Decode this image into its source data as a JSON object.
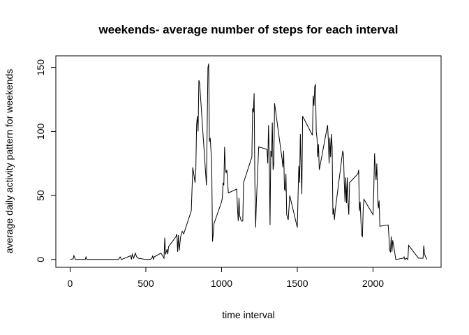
{
  "chart_data": {
    "type": "line",
    "title": "weekends- average number of steps for each interval",
    "x_label": "time interval",
    "y_label": "average daily activity pattern for weekends",
    "color": "#000000",
    "x": [
      0,
      20,
      25,
      35,
      100,
      105,
      110,
      200,
      300,
      320,
      330,
      340,
      400,
      405,
      410,
      420,
      430,
      440,
      450,
      500,
      530,
      540,
      545,
      550,
      555,
      600,
      620,
      625,
      630,
      640,
      645,
      650,
      700,
      705,
      710,
      715,
      720,
      730,
      740,
      750,
      800,
      810,
      825,
      830,
      835,
      840,
      845,
      850,
      855,
      900,
      910,
      915,
      920,
      925,
      935,
      940,
      945,
      950,
      1000,
      1005,
      1010,
      1015,
      1020,
      1025,
      1030,
      1035,
      1040,
      1045,
      1100,
      1105,
      1110,
      1115,
      1120,
      1130,
      1140,
      1145,
      1200,
      1205,
      1210,
      1215,
      1220,
      1225,
      1230,
      1245,
      1300,
      1305,
      1310,
      1315,
      1320,
      1325,
      1330,
      1335,
      1340,
      1345,
      1350,
      1400,
      1405,
      1410,
      1415,
      1420,
      1425,
      1430,
      1440,
      1445,
      1450,
      1500,
      1505,
      1510,
      1515,
      1520,
      1525,
      1530,
      1535,
      1600,
      1605,
      1610,
      1615,
      1620,
      1625,
      1630,
      1635,
      1640,
      1645,
      1700,
      1705,
      1710,
      1715,
      1720,
      1725,
      1730,
      1735,
      1740,
      1745,
      1750,
      1800,
      1805,
      1810,
      1815,
      1820,
      1825,
      1830,
      1835,
      1840,
      1845,
      1900,
      1905,
      1910,
      1915,
      1920,
      1925,
      1930,
      1935,
      1940,
      2000,
      2005,
      2010,
      2015,
      2020,
      2025,
      2030,
      2035,
      2040,
      2045,
      2100,
      2105,
      2110,
      2115,
      2120,
      2125,
      2130,
      2140,
      2150,
      2200,
      2205,
      2210,
      2220,
      2230,
      2235,
      2300,
      2330,
      2335,
      2340,
      2355
    ],
    "values": [
      0,
      0.5,
      3,
      0,
      0,
      2,
      0,
      0,
      0,
      0,
      2,
      0,
      3,
      0,
      4,
      1,
      5,
      2,
      1,
      0,
      0,
      1,
      3,
      0,
      2,
      5,
      1,
      17,
      4,
      8,
      4,
      10,
      18,
      20,
      6,
      19,
      7,
      18,
      22,
      20,
      38,
      72,
      60,
      70,
      105,
      112,
      100,
      140,
      138,
      58,
      150,
      153,
      92,
      95,
      75,
      14,
      20,
      28,
      45,
      48,
      60,
      58,
      88,
      70,
      68,
      70,
      60,
      52,
      55,
      40,
      30,
      48,
      34,
      30,
      30,
      60,
      80,
      118,
      115,
      130,
      58,
      25,
      45,
      88,
      86,
      75,
      105,
      78,
      27,
      85,
      80,
      107,
      70,
      75,
      122,
      78,
      72,
      85,
      55,
      54,
      67,
      35,
      31,
      40,
      50,
      25,
      50,
      73,
      60,
      98,
      72,
      51,
      112,
      97,
      128,
      120,
      135,
      137,
      100,
      95,
      80,
      90,
      70,
      105,
      93,
      75,
      95,
      80,
      98,
      88,
      35,
      40,
      31,
      38,
      85,
      82,
      60,
      45,
      64,
      44,
      64,
      45,
      35,
      60,
      67,
      70,
      38,
      45,
      30,
      19,
      18,
      40,
      47,
      35,
      55,
      83,
      70,
      62,
      75,
      50,
      40,
      46,
      26,
      27,
      18,
      7,
      6,
      18,
      6,
      15,
      8,
      0,
      1,
      2,
      0,
      1,
      0,
      11,
      1,
      1,
      11,
      4,
      0
    ],
    "xlim": [
      -94.2,
      2449.2
    ],
    "ylim": [
      -6.1,
      159.1
    ],
    "xticks": [
      0,
      500,
      1000,
      1500,
      2000
    ],
    "yticks": [
      0,
      50,
      100,
      150
    ]
  }
}
